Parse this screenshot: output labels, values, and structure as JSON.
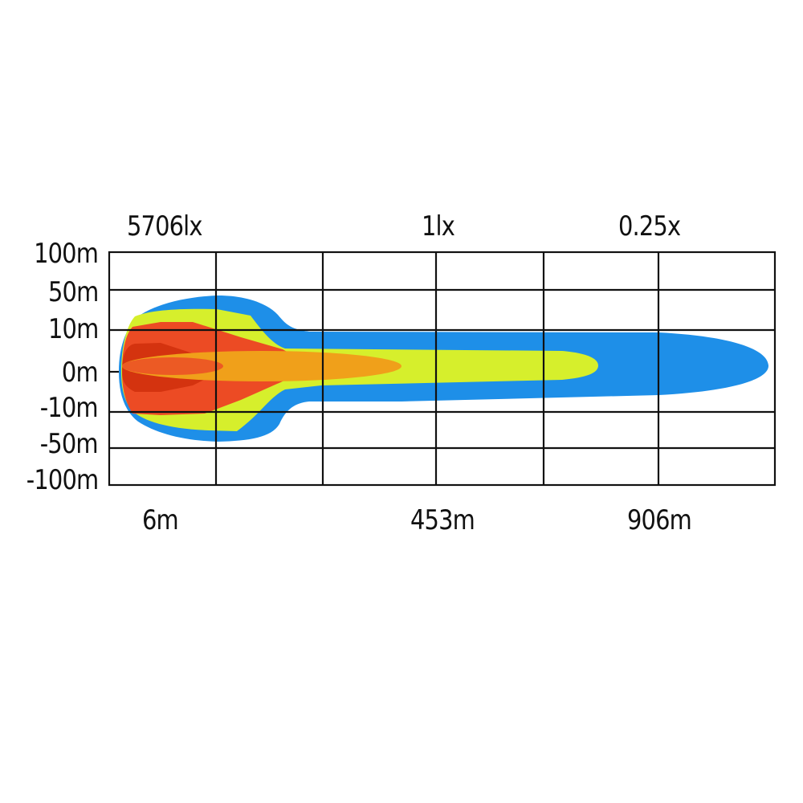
{
  "chart_data": {
    "type": "area",
    "top_labels": [
      "5706lx",
      "1lx",
      "0.25x"
    ],
    "y_tick_labels": [
      "100m",
      "50m",
      "10m",
      "0m",
      "-10m",
      "-50m",
      "-100m"
    ],
    "x_labels": [
      "6m",
      "453m",
      "906m"
    ],
    "grid": true,
    "colors": {
      "outer": "#1e8fe8",
      "mid": "#d6ef2c",
      "inner": "#ec4b24",
      "core": "#d4330f",
      "spot": "#f0a01a",
      "grid": "#111111"
    }
  }
}
